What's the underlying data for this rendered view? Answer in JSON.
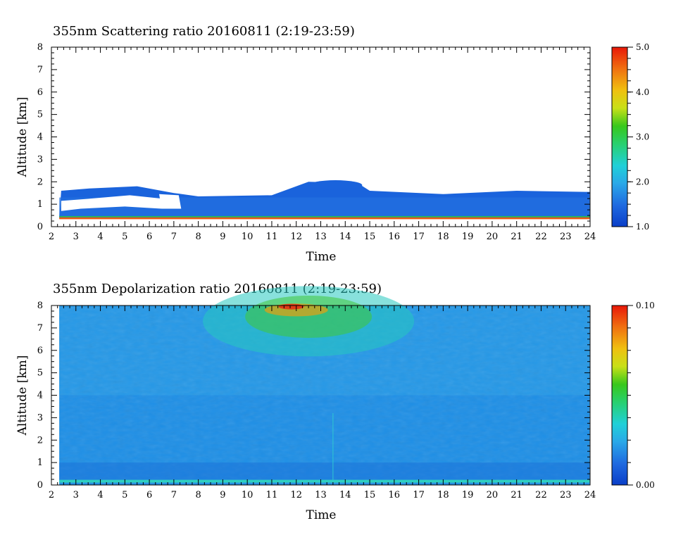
{
  "chart_data": [
    {
      "type": "heatmap",
      "title": "355nm Scattering ratio  20160811 (2:19-23:59)",
      "xlabel": "Time",
      "ylabel": "Altitude [km]",
      "xlim": [
        2,
        24
      ],
      "ylim": [
        0,
        8
      ],
      "x_ticks": [
        "2",
        "3",
        "4",
        "5",
        "6",
        "7",
        "8",
        "9",
        "10",
        "11",
        "12",
        "13",
        "14",
        "15",
        "16",
        "17",
        "18",
        "19",
        "20",
        "21",
        "22",
        "23",
        "24"
      ],
      "y_ticks": [
        "0",
        "1",
        "2",
        "3",
        "4",
        "5",
        "6",
        "7",
        "8"
      ],
      "data_start_time": 2.32,
      "data_end_time": 23.98,
      "colorbar": {
        "min": 1.0,
        "max": 5.0,
        "labels": [
          "1.0",
          "2.0",
          "3.0",
          "4.0",
          "5.0"
        ]
      },
      "layers": [
        {
          "description_value": 1.25,
          "bottom_km": 0.4,
          "top_km": 1.5
        },
        {
          "description_value": 5.0,
          "altitude_km": 0.35
        }
      ],
      "cloud_top_km": [
        {
          "t": 2.4,
          "top": 1.6
        },
        {
          "t": 3.5,
          "top": 1.7
        },
        {
          "t": 5.5,
          "top": 1.8
        },
        {
          "t": 7.0,
          "top": 1.5
        },
        {
          "t": 8.0,
          "top": 1.35
        },
        {
          "t": 11.0,
          "top": 1.4
        },
        {
          "t": 12.5,
          "top": 2.0
        },
        {
          "t": 14.5,
          "top": 1.95
        },
        {
          "t": 15.0,
          "top": 1.6
        },
        {
          "t": 18.0,
          "top": 1.45
        },
        {
          "t": 21.0,
          "top": 1.6
        },
        {
          "t": 23.8,
          "top": 1.55
        }
      ]
    },
    {
      "type": "heatmap",
      "title": "355nm Depolarization ratio  20160811 (2:19-23:59)",
      "xlabel": "Time",
      "ylabel": "Altitude [km]",
      "xlim": [
        2,
        24
      ],
      "ylim": [
        0,
        8
      ],
      "x_ticks": [
        "2",
        "3",
        "4",
        "5",
        "6",
        "7",
        "8",
        "9",
        "10",
        "11",
        "12",
        "13",
        "14",
        "15",
        "16",
        "17",
        "18",
        "19",
        "20",
        "21",
        "22",
        "23",
        "24"
      ],
      "y_ticks": [
        "0",
        "1",
        "2",
        "3",
        "4",
        "5",
        "6",
        "7",
        "8"
      ],
      "data_start_time": 2.32,
      "data_end_time": 23.98,
      "colorbar": {
        "min": 0.0,
        "max": 0.1,
        "labels": [
          "0.00",
          "0.10"
        ]
      },
      "noisy_region": {
        "t_center": 12.5,
        "altitude_min_km": 4.0,
        "altitude_max_km": 8.0,
        "peak_value": 0.1
      }
    }
  ]
}
